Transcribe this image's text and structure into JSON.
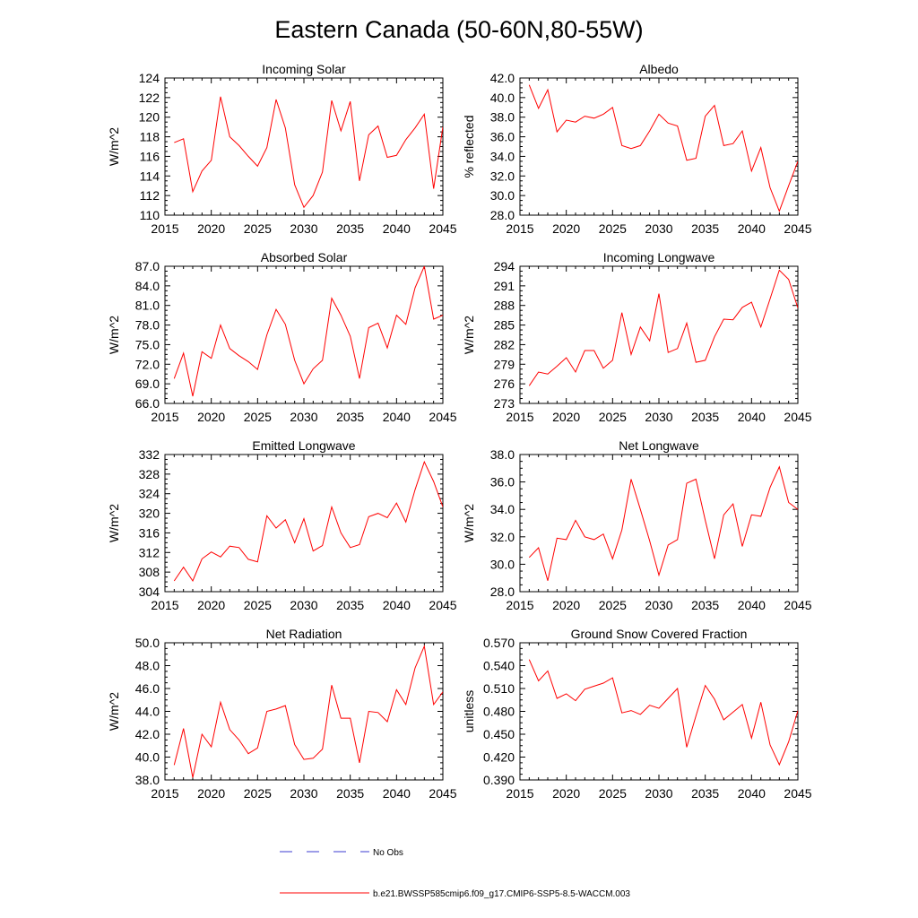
{
  "figure": {
    "title": "Eastern Canada (50-60N,80-55W)"
  },
  "legend": {
    "obs_label": "No Obs",
    "obs_color": "#3b3bd0",
    "model_label": "b.e21.BWSSP585cmip6.f09_g17.CMIP6-SSP5-8.5-WACCM.003",
    "model_color": "#ff0000"
  },
  "chart_data": [
    {
      "type": "line",
      "title": "Incoming Solar",
      "ylabel": "W/m^2",
      "xlabel": "",
      "xlim": [
        2015,
        2045
      ],
      "ylim": [
        110,
        124
      ],
      "xticks": [
        2015,
        2020,
        2025,
        2030,
        2035,
        2040,
        2045
      ],
      "yticks": [
        "110",
        "112",
        "114",
        "116",
        "118",
        "120",
        "122",
        "124"
      ],
      "series": [
        {
          "name": "b.e21.BWSSP585cmip6.f09_g17.CMIP6-SSP5-8.5-WACCM.003",
          "x": [
            2016,
            2017,
            2018,
            2019,
            2020,
            2021,
            2022,
            2023,
            2024,
            2025,
            2026,
            2027,
            2028,
            2029,
            2030,
            2031,
            2032,
            2033,
            2034,
            2035,
            2036,
            2037,
            2038,
            2039,
            2040,
            2041,
            2042,
            2043,
            2044,
            2045
          ],
          "values": [
            117.4,
            117.8,
            112.4,
            114.5,
            115.6,
            122.1,
            118.0,
            117.1,
            116.0,
            115.0,
            116.9,
            121.8,
            118.9,
            113.1,
            110.8,
            112.0,
            114.4,
            121.7,
            118.6,
            121.6,
            113.5,
            118.2,
            119.1,
            115.9,
            116.1,
            117.7,
            118.9,
            120.3,
            112.7,
            119.0
          ]
        }
      ]
    },
    {
      "type": "line",
      "title": "Albedo",
      "ylabel": "% reflected",
      "xlabel": "",
      "xlim": [
        2015,
        2045
      ],
      "ylim": [
        28,
        42
      ],
      "xticks": [
        2015,
        2020,
        2025,
        2030,
        2035,
        2040,
        2045
      ],
      "yticks": [
        "28.0",
        "30.0",
        "32.0",
        "34.0",
        "36.0",
        "38.0",
        "40.0",
        "42.0"
      ],
      "series": [
        {
          "name": "b.e21.BWSSP585cmip6.f09_g17.CMIP6-SSP5-8.5-WACCM.003",
          "x": [
            2016,
            2017,
            2018,
            2019,
            2020,
            2021,
            2022,
            2023,
            2024,
            2025,
            2026,
            2027,
            2028,
            2029,
            2030,
            2031,
            2032,
            2033,
            2034,
            2035,
            2036,
            2037,
            2038,
            2039,
            2040,
            2041,
            2042,
            2043,
            2044,
            2045
          ],
          "values": [
            41.3,
            38.9,
            40.8,
            36.5,
            37.7,
            37.5,
            38.1,
            37.9,
            38.3,
            39.0,
            35.1,
            34.8,
            35.1,
            36.6,
            38.3,
            37.4,
            37.1,
            33.6,
            33.8,
            38.1,
            39.2,
            35.1,
            35.3,
            36.6,
            32.5,
            34.9,
            30.8,
            28.4,
            31.0,
            33.5
          ]
        }
      ]
    },
    {
      "type": "line",
      "title": "Absorbed Solar",
      "ylabel": "W/m^2",
      "xlabel": "",
      "xlim": [
        2015,
        2045
      ],
      "ylim": [
        66,
        87
      ],
      "xticks": [
        2015,
        2020,
        2025,
        2030,
        2035,
        2040,
        2045
      ],
      "yticks": [
        "66.0",
        "69.0",
        "72.0",
        "75.0",
        "78.0",
        "81.0",
        "84.0",
        "87.0"
      ],
      "series": [
        {
          "name": "b.e21.BWSSP585cmip6.f09_g17.CMIP6-SSP5-8.5-WACCM.003",
          "x": [
            2016,
            2017,
            2018,
            2019,
            2020,
            2021,
            2022,
            2023,
            2024,
            2025,
            2026,
            2027,
            2028,
            2029,
            2030,
            2031,
            2032,
            2033,
            2034,
            2035,
            2036,
            2037,
            2038,
            2039,
            2040,
            2041,
            2042,
            2043,
            2044,
            2045
          ],
          "values": [
            69.8,
            73.7,
            67.1,
            73.9,
            72.9,
            78.0,
            74.4,
            73.3,
            72.4,
            71.2,
            76.5,
            80.4,
            78.1,
            72.6,
            69.0,
            71.3,
            72.6,
            82.1,
            79.5,
            76.3,
            69.8,
            77.6,
            78.3,
            74.5,
            79.5,
            78.1,
            83.7,
            87.0,
            78.9,
            79.5
          ]
        }
      ]
    },
    {
      "type": "line",
      "title": "Incoming Longwave",
      "ylabel": "W/m^2",
      "xlabel": "",
      "xlim": [
        2015,
        2045
      ],
      "ylim": [
        273,
        294
      ],
      "xticks": [
        2015,
        2020,
        2025,
        2030,
        2035,
        2040,
        2045
      ],
      "yticks": [
        "273",
        "276",
        "279",
        "282",
        "285",
        "288",
        "291",
        "294"
      ],
      "series": [
        {
          "name": "b.e21.BWSSP585cmip6.f09_g17.CMIP6-SSP5-8.5-WACCM.003",
          "x": [
            2016,
            2017,
            2018,
            2019,
            2020,
            2021,
            2022,
            2023,
            2024,
            2025,
            2026,
            2027,
            2028,
            2029,
            2030,
            2031,
            2032,
            2033,
            2034,
            2035,
            2036,
            2037,
            2038,
            2039,
            2040,
            2041,
            2042,
            2043,
            2044,
            2045
          ],
          "values": [
            275.7,
            277.8,
            277.5,
            278.7,
            280.0,
            277.8,
            281.1,
            281.1,
            278.4,
            279.6,
            286.9,
            280.5,
            284.7,
            282.6,
            289.8,
            280.8,
            281.4,
            285.3,
            279.3,
            279.6,
            283.2,
            285.9,
            285.8,
            287.7,
            288.5,
            284.7,
            289.0,
            293.4,
            292.0,
            287.6
          ]
        }
      ]
    },
    {
      "type": "line",
      "title": "Emitted Longwave",
      "ylabel": "W/m^2",
      "xlabel": "",
      "xlim": [
        2015,
        2045
      ],
      "ylim": [
        304,
        332
      ],
      "xticks": [
        2015,
        2020,
        2025,
        2030,
        2035,
        2040,
        2045
      ],
      "yticks": [
        "304",
        "308",
        "312",
        "316",
        "320",
        "324",
        "328",
        "332"
      ],
      "series": [
        {
          "name": "b.e21.BWSSP585cmip6.f09_g17.CMIP6-SSP5-8.5-WACCM.003",
          "x": [
            2016,
            2017,
            2018,
            2019,
            2020,
            2021,
            2022,
            2023,
            2024,
            2025,
            2026,
            2027,
            2028,
            2029,
            2030,
            2031,
            2032,
            2033,
            2034,
            2035,
            2036,
            2037,
            2038,
            2039,
            2040,
            2041,
            2042,
            2043,
            2044,
            2045
          ],
          "values": [
            306.2,
            309.0,
            306.2,
            310.7,
            312.1,
            311.1,
            313.3,
            313.0,
            310.6,
            310.1,
            319.5,
            317.0,
            318.7,
            314.0,
            318.9,
            312.3,
            313.4,
            321.3,
            316.0,
            313.0,
            313.6,
            319.3,
            320.0,
            319.1,
            322.1,
            318.2,
            324.8,
            330.5,
            326.5,
            321.3
          ]
        }
      ]
    },
    {
      "type": "line",
      "title": "Net Longwave",
      "ylabel": "W/m^2",
      "xlabel": "",
      "xlim": [
        2015,
        2045
      ],
      "ylim": [
        28,
        38
      ],
      "xticks": [
        2015,
        2020,
        2025,
        2030,
        2035,
        2040,
        2045
      ],
      "yticks": [
        "28.0",
        "30.0",
        "32.0",
        "34.0",
        "36.0",
        "38.0"
      ],
      "series": [
        {
          "name": "b.e21.BWSSP585cmip6.f09_g17.CMIP6-SSP5-8.5-WACCM.003",
          "x": [
            2016,
            2017,
            2018,
            2019,
            2020,
            2021,
            2022,
            2023,
            2024,
            2025,
            2026,
            2027,
            2028,
            2029,
            2030,
            2031,
            2032,
            2033,
            2034,
            2035,
            2036,
            2037,
            2038,
            2039,
            2040,
            2041,
            2042,
            2043,
            2044,
            2045
          ],
          "values": [
            30.5,
            31.2,
            28.8,
            31.9,
            31.8,
            33.2,
            32.0,
            31.8,
            32.2,
            30.4,
            32.5,
            36.2,
            34.0,
            31.7,
            29.2,
            31.4,
            31.8,
            35.9,
            36.2,
            33.2,
            30.4,
            33.6,
            34.4,
            31.3,
            33.6,
            33.5,
            35.6,
            37.1,
            34.5,
            34.0
          ]
        }
      ]
    },
    {
      "type": "line",
      "title": "Net Radiation",
      "ylabel": "W/m^2",
      "xlabel": "",
      "xlim": [
        2015,
        2045
      ],
      "ylim": [
        38,
        50
      ],
      "xticks": [
        2015,
        2020,
        2025,
        2030,
        2035,
        2040,
        2045
      ],
      "yticks": [
        "38.0",
        "40.0",
        "42.0",
        "44.0",
        "46.0",
        "48.0",
        "50.0"
      ],
      "series": [
        {
          "name": "b.e21.BWSSP585cmip6.f09_g17.CMIP6-SSP5-8.5-WACCM.003",
          "x": [
            2016,
            2017,
            2018,
            2019,
            2020,
            2021,
            2022,
            2023,
            2024,
            2025,
            2026,
            2027,
            2028,
            2029,
            2030,
            2031,
            2032,
            2033,
            2034,
            2035,
            2036,
            2037,
            2038,
            2039,
            2040,
            2041,
            2042,
            2043,
            2044,
            2045
          ],
          "values": [
            39.3,
            42.5,
            38.2,
            42.0,
            40.9,
            44.8,
            42.4,
            41.5,
            40.3,
            40.8,
            44.0,
            44.2,
            44.5,
            41.1,
            39.8,
            39.9,
            40.7,
            46.3,
            43.4,
            43.4,
            39.5,
            44.0,
            43.9,
            43.1,
            45.9,
            44.6,
            47.8,
            49.7,
            44.6,
            45.7
          ]
        }
      ]
    },
    {
      "type": "line",
      "title": "Ground Snow Covered Fraction",
      "ylabel": "unitless",
      "xlabel": "",
      "xlim": [
        2015,
        2045
      ],
      "ylim": [
        0.39,
        0.57
      ],
      "xticks": [
        2015,
        2020,
        2025,
        2030,
        2035,
        2040,
        2045
      ],
      "yticks": [
        "0.390",
        "0.420",
        "0.450",
        "0.480",
        "0.510",
        "0.540",
        "0.570"
      ],
      "series": [
        {
          "name": "b.e21.BWSSP585cmip6.f09_g17.CMIP6-SSP5-8.5-WACCM.003",
          "x": [
            2016,
            2017,
            2018,
            2019,
            2020,
            2021,
            2022,
            2023,
            2024,
            2025,
            2026,
            2027,
            2028,
            2029,
            2030,
            2031,
            2032,
            2033,
            2034,
            2035,
            2036,
            2037,
            2038,
            2039,
            2040,
            2041,
            2042,
            2043,
            2044,
            2045
          ],
          "values": [
            0.548,
            0.52,
            0.533,
            0.497,
            0.503,
            0.494,
            0.509,
            0.513,
            0.517,
            0.524,
            0.478,
            0.481,
            0.476,
            0.488,
            0.484,
            0.497,
            0.51,
            0.433,
            0.474,
            0.514,
            0.496,
            0.469,
            0.479,
            0.489,
            0.445,
            0.492,
            0.436,
            0.41,
            0.44,
            0.481
          ]
        }
      ]
    }
  ]
}
